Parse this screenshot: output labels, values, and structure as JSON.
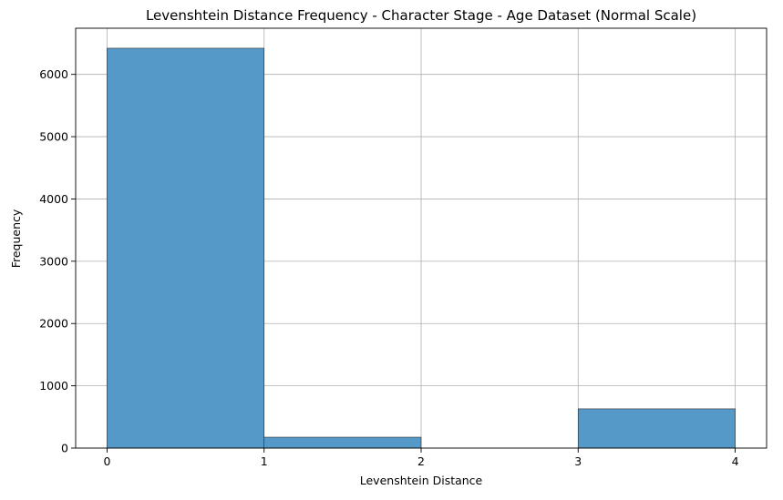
{
  "chart_data": {
    "type": "bar",
    "title": "Levenshtein Distance Frequency - Character Stage - Age Dataset (Normal Scale)",
    "xlabel": "Levenshtein Distance",
    "ylabel": "Frequency",
    "bins": [
      {
        "start": 0,
        "end": 1,
        "value": 6420
      },
      {
        "start": 1,
        "end": 2,
        "value": 175
      },
      {
        "start": 2,
        "end": 3,
        "value": 0
      },
      {
        "start": 3,
        "end": 4,
        "value": 630
      }
    ],
    "xlim": [
      -0.2,
      4.2
    ],
    "ylim": [
      0,
      6741
    ],
    "xticks": [
      0,
      1,
      2,
      3,
      4
    ],
    "yticks": [
      0,
      1000,
      2000,
      3000,
      4000,
      5000,
      6000
    ],
    "grid": true,
    "colors": {
      "bar_fill": "#5599c8",
      "bar_edge": "#2b2b2b",
      "grid": "#b0b0b0",
      "axis": "#000000"
    }
  }
}
